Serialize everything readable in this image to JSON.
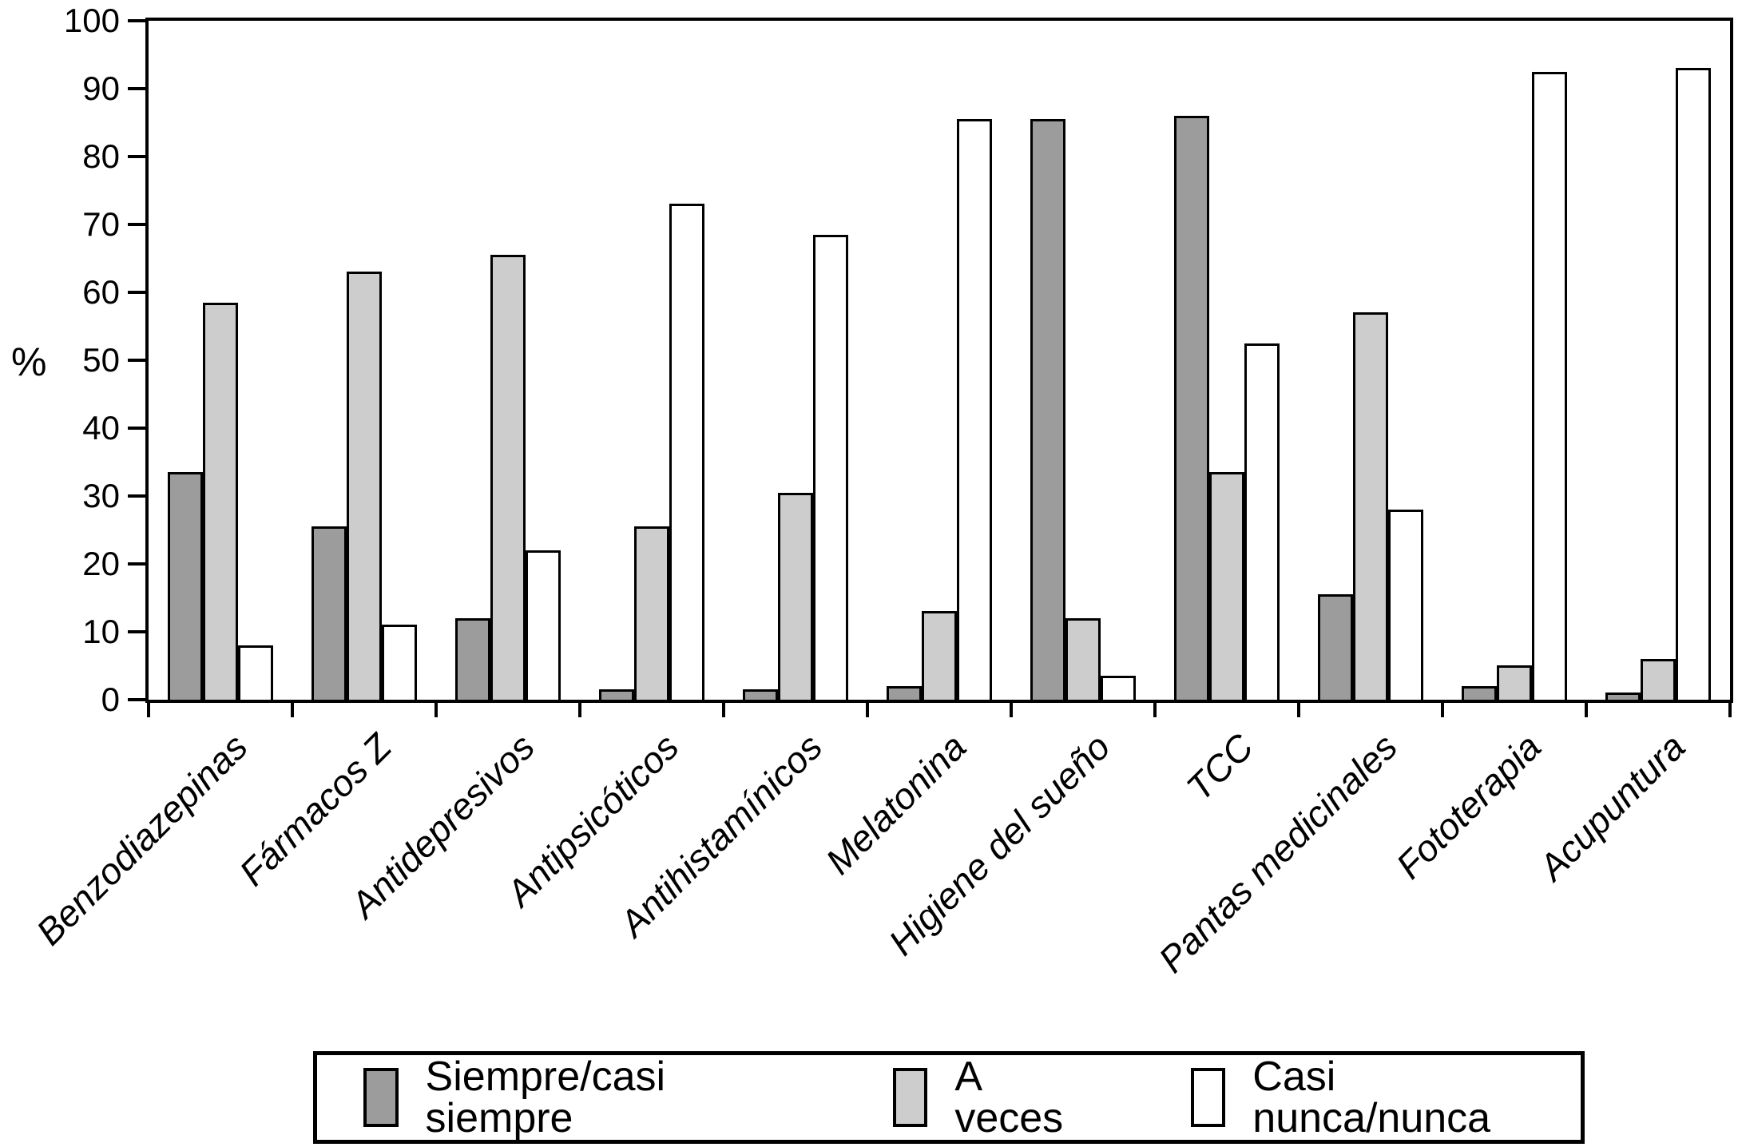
{
  "figure": {
    "background": "#ffffff",
    "axis_color": "#000000"
  },
  "y_axis": {
    "label": "%",
    "tick_min": 0,
    "tick_max": 100,
    "tick_step": 10
  },
  "chart_data": {
    "type": "bar",
    "title": "",
    "xlabel": "",
    "ylabel": "%",
    "ylim": [
      0,
      100
    ],
    "ytick_step": 10,
    "grid": false,
    "legend_position": "bottom-outside-box",
    "categories": [
      "Benzodiazepinas",
      "Fármacos Z",
      "Antidepresivos",
      "Antipsicóticos",
      "Antihistamínicos",
      "Melatonina",
      "Higiene del sueño",
      "TCC",
      "Pantas medicinales",
      "Fototerapia",
      "Acupuntura"
    ],
    "series": [
      {
        "name": "Siempre/casi siempre",
        "color": "#9c9c9c",
        "values": [
          33.5,
          25.5,
          12,
          1.5,
          1.5,
          2,
          85.5,
          86,
          15.5,
          2,
          1
        ]
      },
      {
        "name": "A veces",
        "color": "#cdcdcd",
        "values": [
          58.5,
          63,
          65.5,
          25.5,
          30.5,
          13,
          12,
          33.5,
          57,
          5,
          6
        ]
      },
      {
        "name": "Casi nunca/nunca",
        "color": "#ffffff",
        "values": [
          8,
          11,
          22,
          73,
          68.5,
          85.5,
          3.5,
          52.5,
          28,
          92.5,
          93
        ]
      }
    ]
  }
}
